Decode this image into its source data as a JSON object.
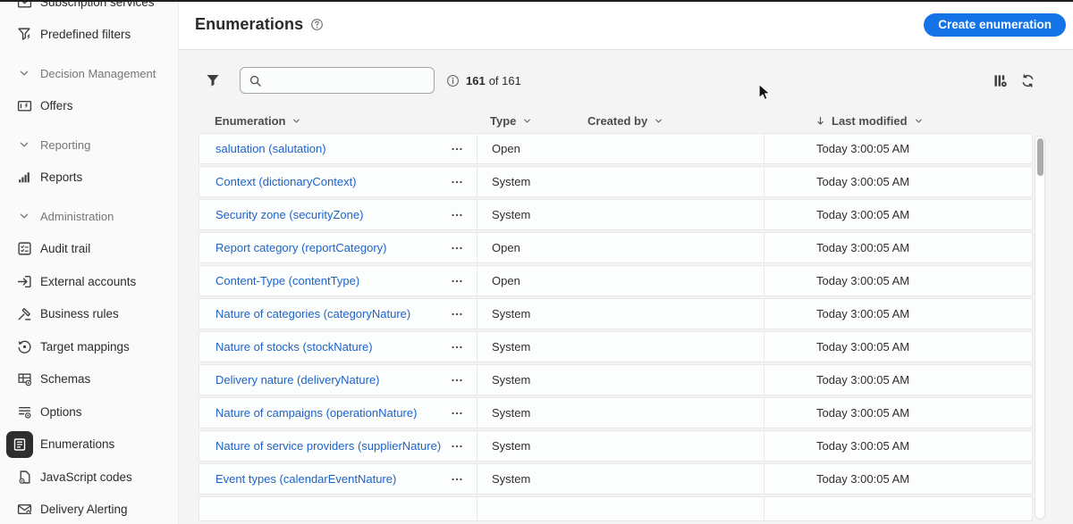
{
  "colors": {
    "accent_blue": "#1473e6",
    "link_blue": "#1c63c9",
    "selected_chip": "#2e2e2e"
  },
  "sidebar": {
    "items": [
      {
        "label": "Subscription services",
        "icon": "subscription-services-icon",
        "partial": true
      },
      {
        "label": "Predefined filters",
        "icon": "predefined-filters-icon"
      },
      {
        "label": "Decision Management",
        "section": true
      },
      {
        "label": "Offers",
        "icon": "offers-icon"
      },
      {
        "label": "Reporting",
        "section": true
      },
      {
        "label": "Reports",
        "icon": "reports-icon"
      },
      {
        "label": "Administration",
        "section": true
      },
      {
        "label": "Audit trail",
        "icon": "audit-trail-icon"
      },
      {
        "label": "External accounts",
        "icon": "external-accounts-icon"
      },
      {
        "label": "Business rules",
        "icon": "business-rules-icon"
      },
      {
        "label": "Target mappings",
        "icon": "target-mappings-icon"
      },
      {
        "label": "Schemas",
        "icon": "schemas-icon"
      },
      {
        "label": "Options",
        "icon": "options-icon"
      },
      {
        "label": "Enumerations",
        "icon": "enumerations-icon",
        "selected": true
      },
      {
        "label": "JavaScript codes",
        "icon": "javascript-codes-icon"
      },
      {
        "label": "Delivery Alerting",
        "icon": "delivery-alerting-icon"
      }
    ]
  },
  "header": {
    "title": "Enumerations",
    "create_button_label": "Create enumeration"
  },
  "toolbar": {
    "search_placeholder": "",
    "search_value": "",
    "result_count": "161",
    "result_count_suffix": "of 161"
  },
  "icons": {
    "filter": "filter-icon",
    "search": "search-icon",
    "info": "info-icon",
    "help": "help-icon",
    "column_settings": "column-settings-icon",
    "refresh": "refresh-icon",
    "more_options": "more-options-icon",
    "sort_descending": "sort-down-arrow-icon",
    "chevron": "chevron-down-icon"
  },
  "table": {
    "columns": [
      {
        "label": "Enumeration",
        "sort_arrow": false
      },
      {
        "label": "Type",
        "sort_arrow": false
      },
      {
        "label": "Created by",
        "sort_arrow": false
      },
      {
        "label": "Last modified",
        "sort_arrow": true
      }
    ],
    "rows": [
      {
        "name": "salutation (salutation)",
        "type": "Open",
        "created_by": "",
        "last_modified": "Today 3:00:05 AM"
      },
      {
        "name": "Context (dictionaryContext)",
        "type": "System",
        "created_by": "",
        "last_modified": "Today 3:00:05 AM"
      },
      {
        "name": "Security zone (securityZone)",
        "type": "System",
        "created_by": "",
        "last_modified": "Today 3:00:05 AM"
      },
      {
        "name": "Report category (reportCategory)",
        "type": "Open",
        "created_by": "",
        "last_modified": "Today 3:00:05 AM"
      },
      {
        "name": "Content-Type (contentType)",
        "type": "Open",
        "created_by": "",
        "last_modified": "Today 3:00:05 AM"
      },
      {
        "name": "Nature of categories (categoryNature)",
        "type": "System",
        "created_by": "",
        "last_modified": "Today 3:00:05 AM"
      },
      {
        "name": "Nature of stocks (stockNature)",
        "type": "System",
        "created_by": "",
        "last_modified": "Today 3:00:05 AM"
      },
      {
        "name": "Delivery nature (deliveryNature)",
        "type": "System",
        "created_by": "",
        "last_modified": "Today 3:00:05 AM"
      },
      {
        "name": "Nature of campaigns (operationNature)",
        "type": "System",
        "created_by": "",
        "last_modified": "Today 3:00:05 AM"
      },
      {
        "name": "Nature of service providers (supplierNature)",
        "type": "System",
        "created_by": "",
        "last_modified": "Today 3:00:05 AM"
      },
      {
        "name": "Event types (calendarEventNature)",
        "type": "System",
        "created_by": "",
        "last_modified": "Today 3:00:05 AM"
      }
    ]
  }
}
